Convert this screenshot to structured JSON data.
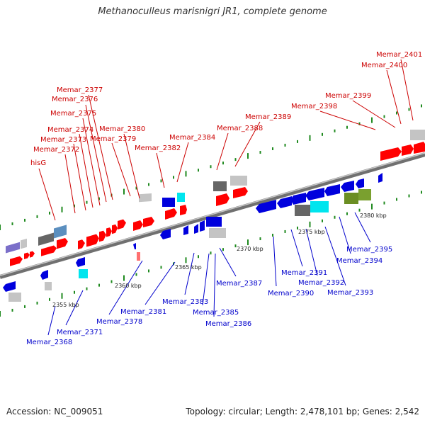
{
  "title": "Methanoculleus marisnigri JR1, complete genome",
  "footer": {
    "accession": "Accession: NC_009051",
    "stats": "Topology: circular; Length: 2,478,101 bp; Genes: 2,542"
  },
  "colors": {
    "plus_strand_label": "#cc0000",
    "minus_strand_label": "#0000cc",
    "backbone": "#8a8a8a",
    "tick": "#1f8a1f"
  },
  "scale": [
    "2355 kbp",
    "2360 kbp",
    "2365 kbp",
    "2370 kbp",
    "2375 kbp",
    "2380 kbp"
  ],
  "plus_strand_genes": [
    "hisG",
    "Memar_2372",
    "Memar_2373",
    "Memar_2374",
    "Memar_2375",
    "Memar_2376",
    "Memar_2377",
    "Memar_2379",
    "Memar_2380",
    "Memar_2382",
    "Memar_2384",
    "Memar_2388",
    "Memar_2389",
    "Memar_2398",
    "Memar_2399",
    "Memar_2400",
    "Memar_2401"
  ],
  "minus_strand_genes": [
    "Memar_2368",
    "Memar_2371",
    "Memar_2378",
    "Memar_2381",
    "Memar_2383",
    "Memar_2385",
    "Memar_2386",
    "Memar_2387",
    "Memar_2390",
    "Memar_2391",
    "Memar_2392",
    "Memar_2393",
    "Memar_2394",
    "Memar_2395"
  ]
}
